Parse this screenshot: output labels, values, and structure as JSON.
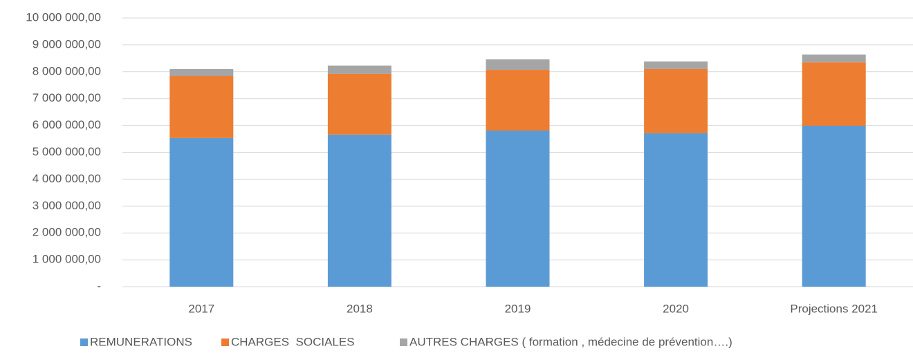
{
  "chart_data": {
    "type": "stacked_bar",
    "categories": [
      "2017",
      "2018",
      "2019",
      "2020",
      "Projections 2021"
    ],
    "series": [
      {
        "name": "REMUNERATIONS",
        "color": "#5b9bd5",
        "values": [
          5530000,
          5660000,
          5810000,
          5710000,
          5990000
        ]
      },
      {
        "name": "CHARGES  SOCIALES",
        "color": "#ed7d31",
        "values": [
          2310000,
          2260000,
          2260000,
          2390000,
          2360000
        ]
      },
      {
        "name": "AUTRES CHARGES ( formation , médecine de prévention….)",
        "color": "#a5a5a5",
        "values": [
          260000,
          310000,
          390000,
          280000,
          290000
        ]
      }
    ],
    "ylim": [
      0,
      10000000
    ],
    "yticks": [
      {
        "value": 0,
        "label": "-"
      },
      {
        "value": 1000000,
        "label": "1 000 000,00"
      },
      {
        "value": 2000000,
        "label": "2 000 000,00"
      },
      {
        "value": 3000000,
        "label": "3 000 000,00"
      },
      {
        "value": 4000000,
        "label": "4 000 000,00"
      },
      {
        "value": 5000000,
        "label": "5 000 000,00"
      },
      {
        "value": 6000000,
        "label": "6 000 000,00"
      },
      {
        "value": 7000000,
        "label": "7 000 000,00"
      },
      {
        "value": 8000000,
        "label": "8 000 000,00"
      },
      {
        "value": 9000000,
        "label": "9 000 000,00"
      },
      {
        "value": 10000000,
        "label": "10 000 000,00"
      }
    ],
    "grid": true,
    "legend": "bottom"
  }
}
